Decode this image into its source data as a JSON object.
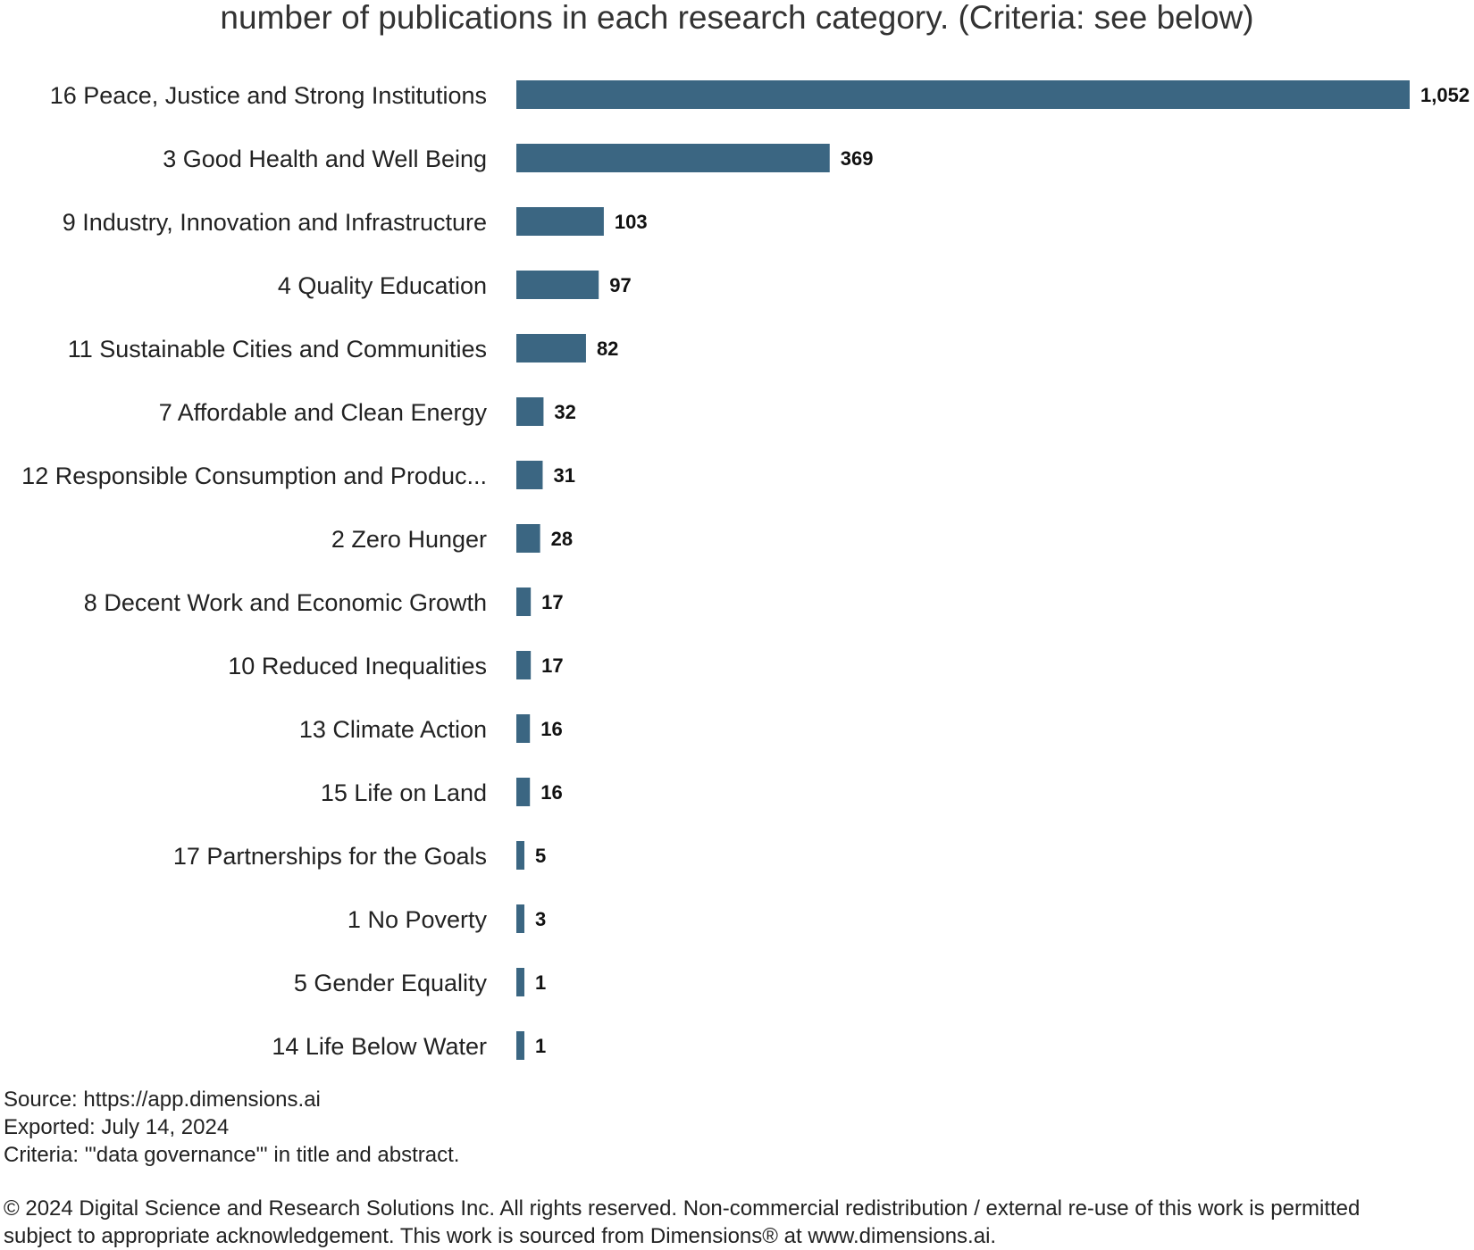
{
  "chart_data": {
    "type": "bar",
    "orientation": "horizontal",
    "title": "number of publications in each research category. (Criteria: see below)",
    "categories": [
      "16 Peace, Justice and Strong Institutions",
      "3 Good Health and Well Being",
      "9 Industry, Innovation and Infrastructure",
      "4 Quality Education",
      "11 Sustainable Cities and Communities",
      "7 Affordable and Clean Energy",
      "12 Responsible Consumption and Produc...",
      "2 Zero Hunger",
      "8 Decent Work and Economic Growth",
      "10 Reduced Inequalities",
      "13 Climate Action",
      "15 Life on Land",
      "17 Partnerships for the Goals",
      "1 No Poverty",
      "5 Gender Equality",
      "14 Life Below Water"
    ],
    "values": [
      1052,
      369,
      103,
      97,
      82,
      32,
      31,
      28,
      17,
      17,
      16,
      16,
      5,
      3,
      1,
      1
    ],
    "value_labels": [
      "1,052",
      "369",
      "103",
      "97",
      "82",
      "32",
      "31",
      "28",
      "17",
      "17",
      "16",
      "16",
      "5",
      "3",
      "1",
      "1"
    ],
    "xlim": [
      0,
      1052
    ],
    "bar_color": "#3b6682",
    "grid": false,
    "legend": "none"
  },
  "notes": {
    "source": "Source: https://app.dimensions.ai",
    "exported": "Exported: July 14, 2024",
    "criteria": "Criteria: '\"data governance\"' in title and abstract."
  },
  "copyright": "© 2024 Digital Science and Research Solutions Inc. All rights reserved. Non-commercial redistribution / external re-use of this work is permitted subject to appropriate acknowledgement. This work is sourced from Dimensions® at www.dimensions.ai."
}
